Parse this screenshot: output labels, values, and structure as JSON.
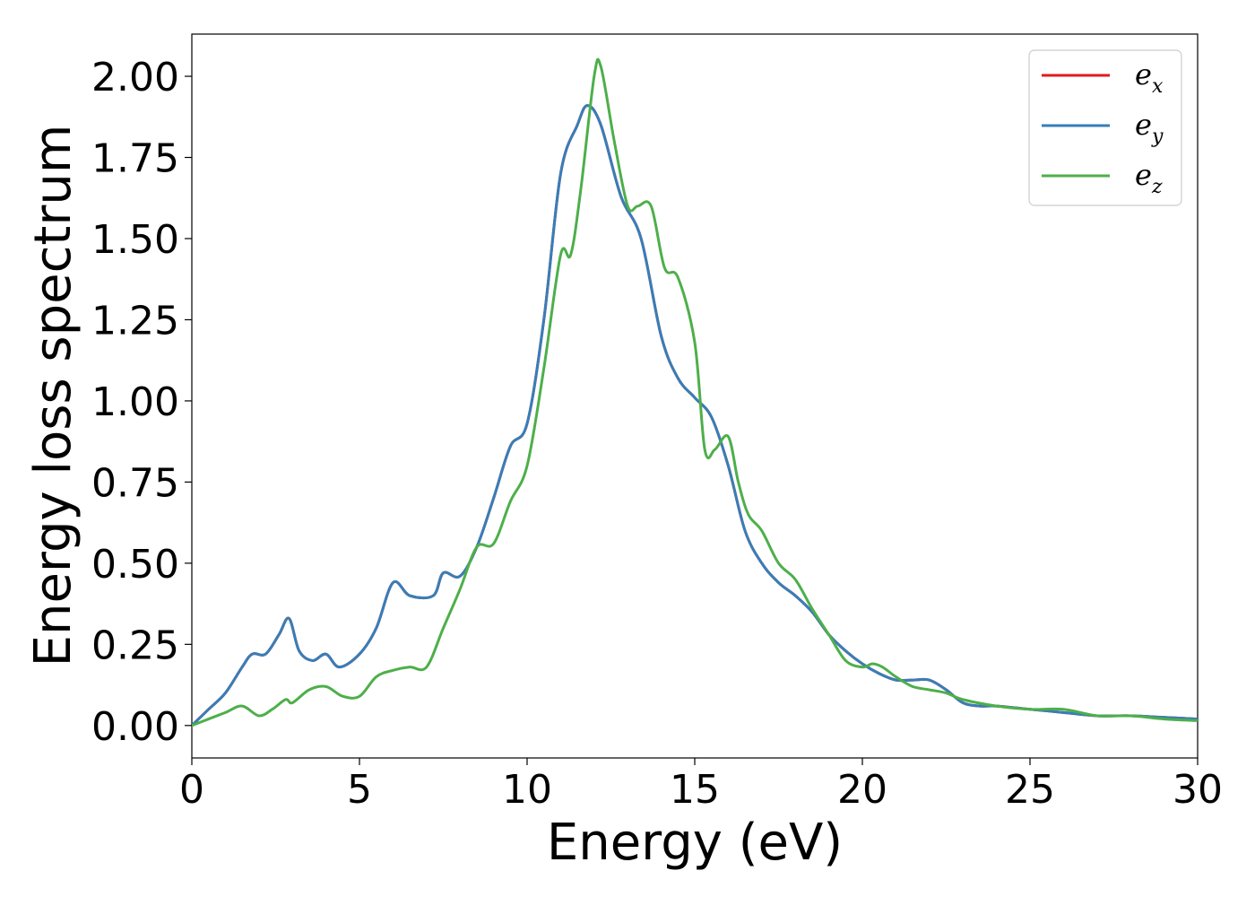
{
  "chart_data": {
    "type": "line",
    "title": "",
    "xlabel": "Energy (eV)",
    "ylabel": "Energy loss spectrum",
    "xlim": [
      0,
      30
    ],
    "ylim": [
      -0.1,
      2.13
    ],
    "xticks": [
      "0",
      "5",
      "10",
      "15",
      "20",
      "25",
      "30"
    ],
    "yticks": [
      "0.00",
      "0.25",
      "0.50",
      "0.75",
      "1.00",
      "1.25",
      "1.50",
      "1.75",
      "2.00"
    ],
    "grid": false,
    "legend_position": "top-right",
    "series": [
      {
        "name": "e_x",
        "legend_base": "e",
        "legend_sub": "x",
        "color": "#e41a1c",
        "x": [
          0,
          0.5,
          1,
          1.5,
          1.8,
          2.2,
          2.6,
          2.9,
          3.2,
          3.6,
          4,
          4.4,
          5,
          5.5,
          6,
          6.5,
          7.2,
          7.5,
          8,
          8.5,
          9,
          9.5,
          10,
          10.5,
          11,
          11.5,
          11.8,
          12.2,
          12.8,
          13.4,
          14,
          14.5,
          15,
          15.5,
          16,
          16.5,
          17,
          17.5,
          18,
          18.5,
          19,
          19.5,
          20,
          20.5,
          21,
          21.5,
          22,
          22.5,
          23,
          23.5,
          24,
          25,
          26,
          27,
          28,
          29,
          30
        ],
        "y": [
          0,
          0.05,
          0.1,
          0.18,
          0.22,
          0.22,
          0.28,
          0.33,
          0.23,
          0.2,
          0.22,
          0.18,
          0.22,
          0.3,
          0.44,
          0.4,
          0.4,
          0.47,
          0.46,
          0.55,
          0.7,
          0.86,
          0.93,
          1.25,
          1.7,
          1.85,
          1.91,
          1.85,
          1.63,
          1.5,
          1.2,
          1.07,
          1.01,
          0.95,
          0.8,
          0.6,
          0.5,
          0.44,
          0.4,
          0.35,
          0.28,
          0.23,
          0.19,
          0.16,
          0.14,
          0.14,
          0.14,
          0.11,
          0.07,
          0.06,
          0.06,
          0.05,
          0.04,
          0.03,
          0.03,
          0.025,
          0.02
        ]
      },
      {
        "name": "e_y",
        "legend_base": "e",
        "legend_sub": "y",
        "color": "#377eb8",
        "x": [
          0,
          0.5,
          1,
          1.5,
          1.8,
          2.2,
          2.6,
          2.9,
          3.2,
          3.6,
          4,
          4.4,
          5,
          5.5,
          6,
          6.5,
          7.2,
          7.5,
          8,
          8.5,
          9,
          9.5,
          10,
          10.5,
          11,
          11.5,
          11.8,
          12.2,
          12.8,
          13.4,
          14,
          14.5,
          15,
          15.5,
          16,
          16.5,
          17,
          17.5,
          18,
          18.5,
          19,
          19.5,
          20,
          20.5,
          21,
          21.5,
          22,
          22.5,
          23,
          23.5,
          24,
          25,
          26,
          27,
          28,
          29,
          30
        ],
        "y": [
          0,
          0.05,
          0.1,
          0.18,
          0.22,
          0.22,
          0.28,
          0.33,
          0.23,
          0.2,
          0.22,
          0.18,
          0.22,
          0.3,
          0.44,
          0.4,
          0.4,
          0.47,
          0.46,
          0.55,
          0.7,
          0.86,
          0.93,
          1.25,
          1.7,
          1.85,
          1.91,
          1.85,
          1.63,
          1.5,
          1.2,
          1.07,
          1.01,
          0.95,
          0.8,
          0.6,
          0.5,
          0.44,
          0.4,
          0.35,
          0.28,
          0.23,
          0.19,
          0.16,
          0.14,
          0.14,
          0.14,
          0.11,
          0.07,
          0.06,
          0.06,
          0.05,
          0.04,
          0.03,
          0.03,
          0.025,
          0.02
        ]
      },
      {
        "name": "e_z",
        "legend_base": "e",
        "legend_sub": "z",
        "color": "#4daf4a",
        "x": [
          0,
          0.5,
          1,
          1.5,
          2,
          2.4,
          2.8,
          3,
          3.5,
          4,
          4.5,
          5,
          5.5,
          6,
          6.5,
          7,
          7.5,
          8,
          8.5,
          9,
          9.5,
          10,
          10.5,
          11,
          11.3,
          11.6,
          12,
          12.2,
          12.6,
          13,
          13.3,
          13.7,
          14.1,
          14.5,
          15,
          15.3,
          15.6,
          16,
          16.3,
          16.6,
          17,
          17.5,
          18,
          18.5,
          19,
          19.5,
          20,
          20.3,
          20.6,
          21,
          21.5,
          22,
          22.5,
          23,
          24,
          25,
          26,
          27,
          28,
          29,
          30
        ],
        "y": [
          0,
          0.02,
          0.04,
          0.06,
          0.03,
          0.05,
          0.08,
          0.07,
          0.11,
          0.12,
          0.09,
          0.09,
          0.15,
          0.17,
          0.18,
          0.18,
          0.3,
          0.42,
          0.55,
          0.56,
          0.69,
          0.8,
          1.1,
          1.45,
          1.45,
          1.65,
          2.0,
          2.03,
          1.8,
          1.6,
          1.6,
          1.6,
          1.41,
          1.38,
          1.18,
          0.85,
          0.85,
          0.89,
          0.75,
          0.65,
          0.6,
          0.5,
          0.45,
          0.36,
          0.28,
          0.2,
          0.18,
          0.19,
          0.18,
          0.15,
          0.12,
          0.11,
          0.1,
          0.08,
          0.06,
          0.05,
          0.05,
          0.03,
          0.03,
          0.02,
          0.015
        ]
      }
    ]
  }
}
